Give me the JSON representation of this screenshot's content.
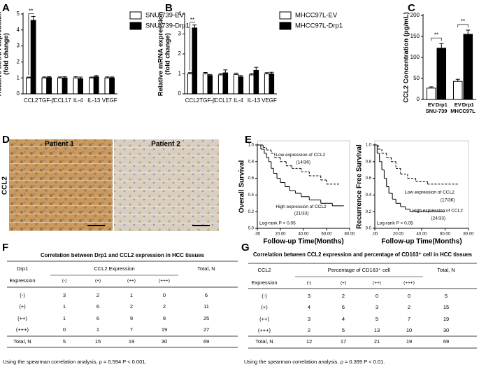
{
  "panel_labels": [
    "A",
    "B",
    "C",
    "D",
    "E",
    "F",
    "G"
  ],
  "chart_data": [
    {
      "type": "bar",
      "y_label": [
        "Relative mRNA expression",
        "(fold change)"
      ],
      "categories": [
        "CCL2",
        "TGF-β",
        "CCL17",
        "IL-4",
        "IL-13",
        "VEGF"
      ],
      "series": [
        {
          "name": "SNU-739-EV",
          "color": "#ffffff",
          "values": [
            1,
            1,
            1,
            1,
            1,
            1
          ],
          "errors": [
            0.05,
            0.06,
            0.06,
            0.07,
            0.05,
            0.06
          ]
        },
        {
          "name": "SNU-739-Drp1",
          "color": "#000000",
          "values": [
            4.6,
            1.02,
            1.0,
            0.95,
            1.07,
            1.0
          ],
          "errors": [
            0.25,
            0.06,
            0.07,
            0.1,
            0.08,
            0.06
          ]
        }
      ],
      "ylim": [
        0,
        5
      ],
      "yticks": [
        0,
        1,
        2,
        3,
        4,
        5
      ],
      "annotations": [
        "**"
      ]
    },
    {
      "type": "bar",
      "y_label": [
        "Relative mRNA expression",
        "(fold change)"
      ],
      "categories": [
        "CCL2",
        "TGF-β",
        "CCL17",
        "IL-4",
        "IL-13",
        "VEGF"
      ],
      "series": [
        {
          "name": "MHCC97L-EV",
          "color": "#ffffff",
          "values": [
            1,
            1,
            0.95,
            0.97,
            0.95,
            1.0
          ],
          "errors": [
            0.06,
            0.07,
            0.06,
            0.07,
            0.06,
            0.06
          ]
        },
        {
          "name": "MHCC97L-Drp1",
          "color": "#000000",
          "values": [
            3.3,
            0.92,
            1.05,
            0.85,
            1.18,
            1.0
          ],
          "errors": [
            0.15,
            0.05,
            0.15,
            0.07,
            0.15,
            0.08
          ]
        }
      ],
      "ylim": [
        0,
        4
      ],
      "yticks": [
        0,
        1,
        2,
        3,
        4
      ],
      "annotations": [
        "**"
      ]
    },
    {
      "type": "bar",
      "y_label": [
        "CCL2 Concentration (pg/mL)"
      ],
      "categories": [
        "EV",
        "Drp1",
        "EV",
        "Drp1"
      ],
      "groups": [
        "SNU-739",
        "MHCC97L"
      ],
      "values": [
        27,
        122,
        43,
        155
      ],
      "errors": [
        3,
        11,
        5,
        10
      ],
      "colors": [
        "#ffffff",
        "#000000",
        "#ffffff",
        "#000000"
      ],
      "ylim": [
        0,
        200
      ],
      "yticks": [
        0,
        50,
        100,
        150,
        200
      ],
      "annotations": [
        "**",
        "**"
      ]
    },
    {
      "type": "step",
      "y_label": "Overall Survival",
      "x_label": "Follow-up Time(Months)",
      "xlim": [
        0,
        80
      ],
      "ylim": [
        0,
        1
      ],
      "xticks": [
        {
          "value": 0,
          "label": ".00"
        },
        {
          "value": 20,
          "label": "20.00"
        },
        {
          "value": 40,
          "label": "40.00"
        },
        {
          "value": 60,
          "label": "60.00"
        },
        {
          "value": 80,
          "label": "80.00"
        }
      ],
      "yticks": [
        {
          "value": 0,
          "label": "0.0"
        },
        {
          "value": 0.2,
          "label": "0.2"
        },
        {
          "value": 0.4,
          "label": "0.4"
        },
        {
          "value": 0.6,
          "label": "0.6"
        },
        {
          "value": 0.8,
          "label": "0.8"
        },
        {
          "value": 1,
          "label": "1.0"
        }
      ],
      "series": [
        {
          "name": "Low expression of CCL2",
          "count_label": "(14/36)",
          "style": "dashed",
          "x": [
            0,
            5,
            8,
            12,
            15,
            20,
            25,
            30,
            38,
            45,
            55,
            60,
            72
          ],
          "values": [
            1,
            0.97,
            0.94,
            0.9,
            0.85,
            0.8,
            0.75,
            0.72,
            0.68,
            0.63,
            0.58,
            0.53,
            0.53
          ]
        },
        {
          "name": "High expression of CCL2",
          "count_label": "(21/33)",
          "style": "solid",
          "x": [
            0,
            3,
            6,
            8,
            10,
            12,
            14,
            17,
            20,
            24,
            28,
            33,
            38,
            45,
            55,
            65,
            75
          ],
          "values": [
            1,
            0.95,
            0.9,
            0.85,
            0.8,
            0.72,
            0.66,
            0.6,
            0.55,
            0.5,
            0.45,
            0.42,
            0.38,
            0.34,
            0.3,
            0.27,
            0.27
          ]
        }
      ],
      "annotation": "Log-rank P < 0.05"
    },
    {
      "type": "step",
      "y_label": "Recurrence Free Survival",
      "x_label": "Follow-up Time(Months)",
      "xlim": [
        0,
        80
      ],
      "ylim": [
        0,
        1
      ],
      "xticks": [
        {
          "value": 0,
          "label": ".00"
        },
        {
          "value": 20,
          "label": "20.00"
        },
        {
          "value": 40,
          "label": "40.00"
        },
        {
          "value": 60,
          "label": "60.00"
        },
        {
          "value": 80,
          "label": "80.00"
        }
      ],
      "yticks": [
        {
          "value": 0,
          "label": "0.0"
        },
        {
          "value": 0.2,
          "label": "0.2"
        },
        {
          "value": 0.4,
          "label": "0.4"
        },
        {
          "value": 0.6,
          "label": "0.6"
        },
        {
          "value": 0.8,
          "label": "0.8"
        },
        {
          "value": 1,
          "label": "1.0"
        }
      ],
      "series": [
        {
          "name": "Low expression of CCL2",
          "count_label": "(17/36)",
          "style": "dashed",
          "x": [
            0,
            3,
            6,
            10,
            14,
            18,
            22,
            28,
            35,
            45,
            60,
            72
          ],
          "values": [
            1,
            0.95,
            0.9,
            0.85,
            0.8,
            0.72,
            0.65,
            0.6,
            0.56,
            0.53,
            0.53,
            0.53
          ]
        },
        {
          "name": "High expression of CCL2",
          "count_label": "(24/33)",
          "style": "solid",
          "x": [
            0,
            2,
            4,
            6,
            8,
            10,
            12,
            15,
            18,
            22,
            26,
            30,
            40,
            50,
            60
          ],
          "values": [
            1,
            0.9,
            0.8,
            0.7,
            0.6,
            0.5,
            0.42,
            0.35,
            0.3,
            0.26,
            0.23,
            0.2,
            0.2,
            0.2,
            0.2
          ]
        }
      ],
      "annotation": "Log-rank P < 0.05"
    }
  ],
  "image_panel": {
    "row_label": "CCL2",
    "images": [
      "Patient 1",
      "Patient 2"
    ]
  },
  "tables": [
    {
      "title": "Correlation between Drp1 and CCL2 expression in HCC tissues",
      "row_label": [
        "Drp1",
        "Expression"
      ],
      "span_label": "CCL2 Expression",
      "columns": [
        "(-)",
        "(+)",
        "(++)",
        "(+++)"
      ],
      "total_label": "Total, N",
      "rows": [
        [
          "(-)",
          3,
          2,
          1,
          0,
          6
        ],
        [
          "(+)",
          1,
          6,
          2,
          2,
          11
        ],
        [
          "(++)",
          1,
          6,
          9,
          9,
          25
        ],
        [
          "(+++)",
          0,
          1,
          7,
          19,
          27
        ],
        [
          "Total, N",
          5,
          15,
          19,
          30,
          69
        ]
      ],
      "note": "Using the spearman correlation analysis, ρ = 0.594 P < 0.001."
    },
    {
      "title": "Correlation between CCL2 expression and percentage of CD163⁺ cell in HCC tissues",
      "row_label": [
        "CCL2",
        "Expression"
      ],
      "span_label": "Percentage of CD163⁺ cell",
      "columns": [
        "(-)",
        "(+)",
        "(++)",
        "(+++)"
      ],
      "total_label": "Total, N",
      "rows": [
        [
          "(-)",
          3,
          2,
          0,
          0,
          5
        ],
        [
          "(+)",
          4,
          6,
          3,
          2,
          15
        ],
        [
          "(++)",
          3,
          4,
          5,
          7,
          19
        ],
        [
          "(+++)",
          2,
          5,
          13,
          10,
          30
        ],
        [
          "Total, N",
          12,
          17,
          21,
          19,
          69
        ]
      ],
      "note": "Using the spearman correlation analysis, ρ = 0.399 P < 0.01."
    }
  ]
}
